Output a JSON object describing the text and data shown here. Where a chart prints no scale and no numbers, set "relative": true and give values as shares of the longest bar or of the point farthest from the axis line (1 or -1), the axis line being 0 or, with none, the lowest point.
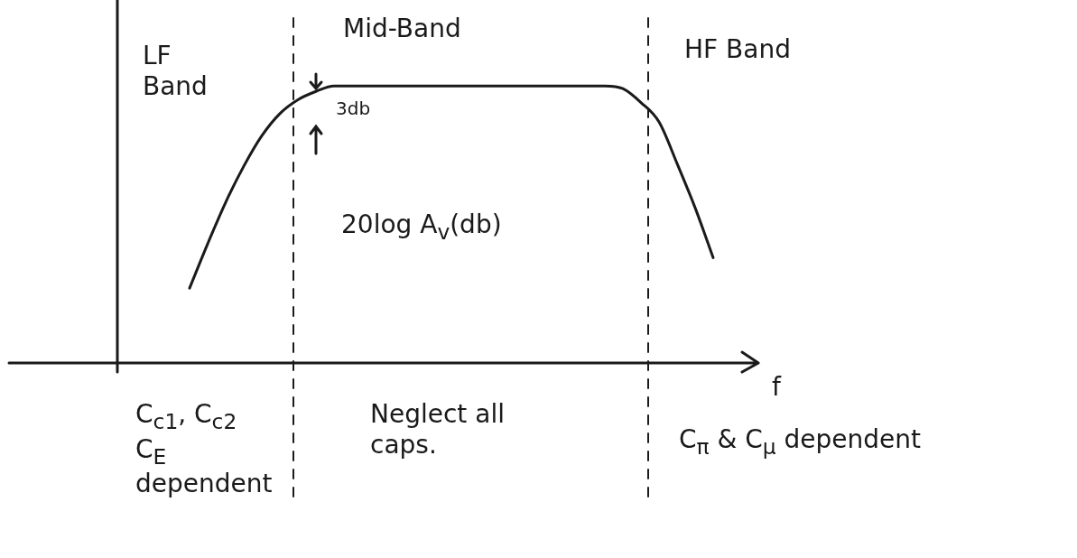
{
  "chart_data": {
    "type": "line",
    "relative": true,
    "xlabel": "f",
    "categories": [
      null,
      null,
      null,
      null,
      null,
      null,
      null,
      null,
      null,
      null,
      null,
      null,
      null,
      null,
      null,
      null,
      null,
      null,
      null,
      null,
      null,
      null,
      null,
      null,
      null,
      null,
      null,
      null,
      null,
      null,
      null,
      null,
      null,
      null,
      null,
      null,
      null
    ],
    "series": [
      {
        "color": "#1a1a1a",
        "values": [
          null,
          null,
          null,
          null,
          0.27,
          0.43,
          0.58,
          0.71,
          0.82,
          0.9,
          0.95,
          0.98,
          1,
          1,
          1,
          1,
          1,
          1,
          1,
          1,
          1,
          1,
          1,
          1,
          1,
          1,
          1,
          1,
          0.99,
          0.94,
          0.87,
          0.72,
          0.56,
          0.38,
          null,
          null,
          null
        ]
      }
    ],
    "annotations": [
      "LF Band",
      "Mid-Band",
      "HF Band",
      "3db",
      "20log A$_{v}$(db)",
      "C$_{c1}$, C$_{c2}$ C$_{E}$ dependent",
      "Neglect all caps.",
      "C$_{π}$ & C$_{μ}$ dependent"
    ],
    "legend": false,
    "grid": false,
    "marker": "none",
    "line_style": "solid"
  }
}
